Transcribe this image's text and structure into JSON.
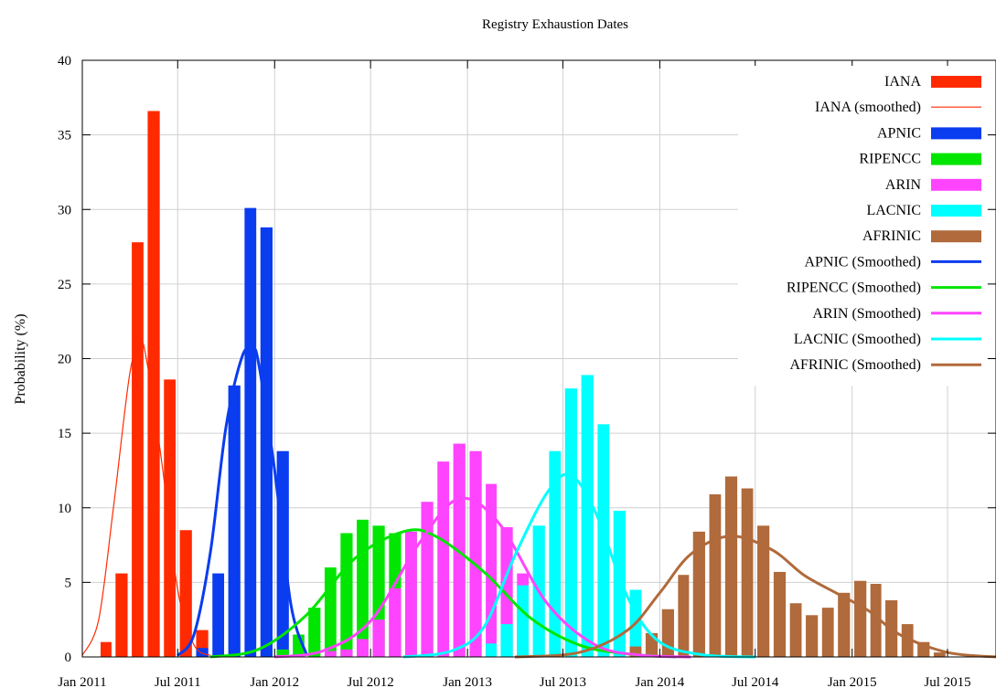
{
  "chart_data": {
    "type": "bar",
    "title": "Registry Exhaustion Dates",
    "ylabel": "Probability (%)",
    "xlabel": "",
    "ylim": [
      0,
      40
    ],
    "yticks": [
      0,
      5,
      10,
      15,
      20,
      25,
      30,
      35,
      40
    ],
    "xlim": [
      "2011-01-01",
      "2015-10-01"
    ],
    "xticks": [
      {
        "date": "2011-01-01",
        "label": "Jan 2011"
      },
      {
        "date": "2011-07-01",
        "label": "Jul 2011"
      },
      {
        "date": "2012-01-01",
        "label": "Jan 2012"
      },
      {
        "date": "2012-07-01",
        "label": "Jul 2012"
      },
      {
        "date": "2013-01-01",
        "label": "Jan 2013"
      },
      {
        "date": "2013-07-01",
        "label": "Jul 2013"
      },
      {
        "date": "2014-01-01",
        "label": "Jan 2014"
      },
      {
        "date": "2014-07-01",
        "label": "Jul 2014"
      },
      {
        "date": "2015-01-01",
        "label": "Jan 2015"
      },
      {
        "date": "2015-07-01",
        "label": "Jul 2015"
      }
    ],
    "grid": true,
    "legend_position": "top-right",
    "series": [
      {
        "name": "IANA",
        "kind": "bar",
        "color": "#ff2a00",
        "x": [
          "2011-02",
          "2011-03",
          "2011-04",
          "2011-05",
          "2011-06",
          "2011-07",
          "2011-08"
        ],
        "values": [
          1.0,
          5.6,
          27.8,
          36.6,
          18.6,
          8.5,
          1.8
        ]
      },
      {
        "name": "APNIC",
        "kind": "bar",
        "color": "#0a3cf0",
        "x": [
          "2011-08",
          "2011-09",
          "2011-10",
          "2011-11",
          "2011-12",
          "2012-01",
          "2012-02"
        ],
        "values": [
          0.6,
          5.6,
          18.2,
          30.1,
          28.8,
          13.8,
          1.5
        ]
      },
      {
        "name": "RIPENCC",
        "kind": "bar",
        "color": "#00e600",
        "x": [
          "2012-01",
          "2012-02",
          "2012-03",
          "2012-04",
          "2012-05",
          "2012-06",
          "2012-07",
          "2012-08",
          "2012-09",
          "2012-10"
        ],
        "values": [
          0.5,
          1.5,
          3.3,
          6.0,
          8.3,
          9.2,
          8.8,
          8.3,
          8.4,
          8.3
        ]
      },
      {
        "name": "ARIN",
        "kind": "bar",
        "color": "#ff44ff",
        "x": [
          "2012-04",
          "2012-05",
          "2012-06",
          "2012-07",
          "2012-08",
          "2012-09",
          "2012-10",
          "2012-11",
          "2012-12",
          "2013-01",
          "2013-02",
          "2013-03",
          "2013-04"
        ],
        "values": [
          0.4,
          0.5,
          1.2,
          2.5,
          4.6,
          8.4,
          10.4,
          13.1,
          14.3,
          13.8,
          11.6,
          8.7,
          5.6
        ]
      },
      {
        "name": "LACNIC",
        "kind": "bar",
        "color": "#00ffff",
        "x": [
          "2013-02",
          "2013-03",
          "2013-04",
          "2013-05",
          "2013-06",
          "2013-07",
          "2013-08",
          "2013-09",
          "2013-10",
          "2013-11"
        ],
        "values": [
          0.9,
          2.2,
          4.8,
          8.8,
          13.8,
          18.0,
          18.9,
          15.6,
          9.8,
          4.5
        ]
      },
      {
        "name": "AFRINIC",
        "kind": "bar",
        "color": "#b06a3b",
        "x": [
          "2013-11",
          "2013-12",
          "2014-01",
          "2014-02",
          "2014-03",
          "2014-04",
          "2014-05",
          "2014-06",
          "2014-07",
          "2014-08",
          "2014-09",
          "2014-10",
          "2014-11",
          "2014-12",
          "2015-01",
          "2015-02",
          "2015-03",
          "2015-04",
          "2015-05",
          "2015-06"
        ],
        "values": [
          0.7,
          1.6,
          3.2,
          5.5,
          8.4,
          10.9,
          12.1,
          11.3,
          8.8,
          5.7,
          3.6,
          2.8,
          3.3,
          4.3,
          5.1,
          4.9,
          3.8,
          2.2,
          1.0,
          0.3
        ]
      },
      {
        "name": "IANA (smoothed)",
        "kind": "line",
        "color": "#ff2a00",
        "width": 1.2,
        "x": [
          "2011-01-01",
          "2011-02-01",
          "2011-03-01",
          "2011-04-01",
          "2011-04-20",
          "2011-05-01",
          "2011-06-01",
          "2011-07-01",
          "2011-08-01",
          "2011-09-01"
        ],
        "values": [
          0.1,
          2.5,
          10.0,
          19.0,
          20.8,
          20.3,
          13.0,
          4.5,
          0.8,
          0.1
        ]
      },
      {
        "name": "APNIC (Smoothed)",
        "kind": "line",
        "color": "#0a3cf0",
        "width": 3,
        "x": [
          "2011-07-01",
          "2011-08-01",
          "2011-09-01",
          "2011-10-01",
          "2011-11-01",
          "2011-11-20",
          "2011-12-01",
          "2012-01-01",
          "2012-02-01",
          "2012-03-01"
        ],
        "values": [
          0.1,
          1.5,
          7.0,
          15.5,
          20.2,
          20.5,
          19.8,
          12.5,
          3.5,
          0.2
        ]
      },
      {
        "name": "RIPENCC (Smoothed)",
        "kind": "line",
        "color": "#00e600",
        "width": 3,
        "x": [
          "2011-09-01",
          "2011-12-01",
          "2012-03-01",
          "2012-06-01",
          "2012-09-01",
          "2012-11-01",
          "2013-02-01",
          "2013-05-01",
          "2013-08-01",
          "2013-11-01",
          "2014-02-01"
        ],
        "values": [
          0.0,
          0.5,
          2.8,
          6.6,
          8.4,
          8.1,
          5.7,
          2.6,
          0.8,
          0.2,
          0.0
        ]
      },
      {
        "name": "ARIN (Smoothed)",
        "kind": "line",
        "color": "#ff44ff",
        "width": 3,
        "x": [
          "2012-01-01",
          "2012-04-01",
          "2012-07-01",
          "2012-10-01",
          "2012-12-15",
          "2013-03-01",
          "2013-06-01",
          "2013-09-01",
          "2013-12-01",
          "2014-03-01"
        ],
        "values": [
          0.0,
          0.4,
          2.4,
          7.6,
          10.6,
          9.0,
          3.6,
          0.8,
          0.1,
          0.0
        ]
      },
      {
        "name": "LACNIC (Smoothed)",
        "kind": "line",
        "color": "#00ffff",
        "width": 3,
        "x": [
          "2012-09-01",
          "2012-12-01",
          "2013-02-01",
          "2013-04-01",
          "2013-06-01",
          "2013-07-15",
          "2013-09-01",
          "2013-11-01",
          "2014-01-01",
          "2014-04-01",
          "2014-07-01"
        ],
        "values": [
          0.0,
          0.4,
          2.0,
          6.8,
          11.0,
          12.2,
          9.7,
          4.0,
          1.0,
          0.1,
          0.0
        ]
      },
      {
        "name": "AFRINIC (Smoothed)",
        "kind": "line",
        "color": "#b06a3b",
        "width": 3,
        "x": [
          "2013-04-01",
          "2013-08-01",
          "2013-11-01",
          "2014-01-01",
          "2014-03-01",
          "2014-05-15",
          "2014-08-01",
          "2014-10-01",
          "2014-12-01",
          "2015-02-01",
          "2015-04-01",
          "2015-07-01",
          "2015-10-01"
        ],
        "values": [
          0.0,
          0.3,
          1.8,
          4.3,
          6.9,
          8.1,
          7.2,
          5.5,
          4.3,
          3.1,
          1.5,
          0.3,
          0.0
        ]
      }
    ],
    "legend": [
      {
        "label": "IANA",
        "type": "box",
        "color": "#ff2a00"
      },
      {
        "label": "IANA (smoothed)",
        "type": "line",
        "color": "#ff2a00",
        "width": 1.2
      },
      {
        "label": "APNIC",
        "type": "box",
        "color": "#0a3cf0"
      },
      {
        "label": "RIPENCC",
        "type": "box",
        "color": "#00e600"
      },
      {
        "label": "ARIN",
        "type": "box",
        "color": "#ff44ff"
      },
      {
        "label": "LACNIC",
        "type": "box",
        "color": "#00ffff"
      },
      {
        "label": "AFRINIC",
        "type": "box",
        "color": "#b06a3b"
      },
      {
        "label": "APNIC (Smoothed)",
        "type": "line",
        "color": "#0a3cf0",
        "width": 3
      },
      {
        "label": "RIPENCC (Smoothed)",
        "type": "line",
        "color": "#00e600",
        "width": 3
      },
      {
        "label": "ARIN (Smoothed)",
        "type": "line",
        "color": "#ff44ff",
        "width": 3
      },
      {
        "label": "LACNIC (Smoothed)",
        "type": "line",
        "color": "#00ffff",
        "width": 3
      },
      {
        "label": "AFRINIC (Smoothed)",
        "type": "line",
        "color": "#b06a3b",
        "width": 3
      }
    ]
  }
}
